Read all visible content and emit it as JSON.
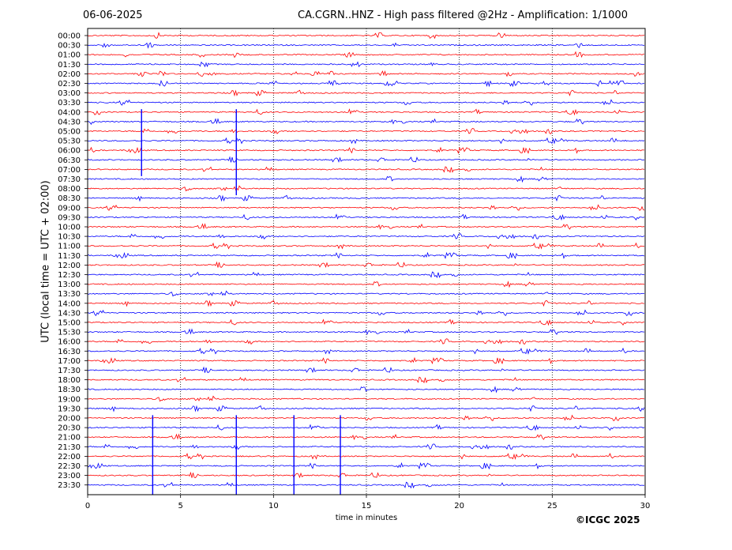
{
  "header": {
    "date": "06-06-2025",
    "title": "CA.CGRN..HNZ - High pass filtered @2Hz - Amplification: 1/1000"
  },
  "credit": "©ICGC 2025",
  "chart_data": {
    "type": "line",
    "ylabel": "UTC (local time = UTC + 02:00)",
    "xlabel": "time in minutes",
    "xlim": [
      0,
      30
    ],
    "xticks": [
      0,
      5,
      10,
      15,
      20,
      25,
      30
    ],
    "grid_x": [
      5,
      10,
      15,
      20,
      25
    ],
    "rows": [
      "00:00",
      "00:30",
      "01:00",
      "01:30",
      "02:00",
      "02:30",
      "03:00",
      "03:30",
      "04:00",
      "04:30",
      "05:00",
      "05:30",
      "06:00",
      "06:30",
      "07:00",
      "07:30",
      "08:00",
      "08:30",
      "09:00",
      "09:30",
      "10:00",
      "10:30",
      "11:00",
      "11:30",
      "12:00",
      "12:30",
      "13:00",
      "13:30",
      "14:00",
      "14:30",
      "15:00",
      "15:30",
      "16:00",
      "16:30",
      "17:00",
      "17:30",
      "18:00",
      "18:30",
      "19:00",
      "19:30",
      "20:00",
      "20:30",
      "21:00",
      "21:30",
      "22:00",
      "22:30",
      "23:00",
      "23:30"
    ],
    "colors": {
      "even": "#ff0000",
      "odd": "#0000ff"
    },
    "big_spikes": [
      {
        "row": "04:00",
        "x": 2.9,
        "extent_rows": 7
      },
      {
        "row": "04:00",
        "x": 8.0,
        "extent_rows": 9
      },
      {
        "row": "20:00",
        "x": 3.5,
        "extent_rows": 9
      },
      {
        "row": "20:00",
        "x": 8.0,
        "extent_rows": 9
      },
      {
        "row": "20:00",
        "x": 11.1,
        "extent_rows": 9
      },
      {
        "row": "20:00",
        "x": 13.6,
        "extent_rows": 9
      }
    ]
  }
}
